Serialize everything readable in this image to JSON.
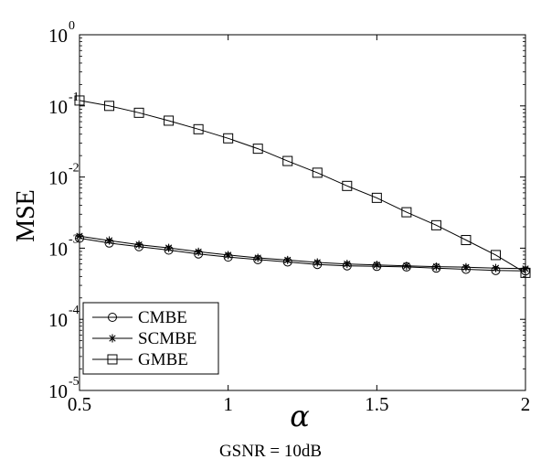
{
  "chart_data": {
    "type": "line",
    "title": "",
    "xlabel": "α",
    "ylabel": "MSE",
    "caption": "GSNR = 10dB",
    "yscale": "log",
    "xlim": [
      0.5,
      2
    ],
    "ylim": [
      1e-05,
      1
    ],
    "xticks": [
      "0.5",
      "1",
      "1.5",
      "2"
    ],
    "yticks": [
      {
        "base": "10",
        "exp": "0"
      },
      {
        "base": "10",
        "exp": "-1"
      },
      {
        "base": "10",
        "exp": "-2"
      },
      {
        "base": "10",
        "exp": "-3"
      },
      {
        "base": "10",
        "exp": "-4"
      },
      {
        "base": "10",
        "exp": "-5"
      }
    ],
    "grid": false,
    "legend_position": "bottom-left",
    "x": [
      0.5,
      0.6,
      0.7,
      0.8,
      0.9,
      1.0,
      1.1,
      1.2,
      1.3,
      1.4,
      1.5,
      1.6,
      1.7,
      1.8,
      1.9,
      2.0
    ],
    "series": [
      {
        "name": "CMBE",
        "marker": "circle",
        "values": [
          0.00138,
          0.00118,
          0.00105,
          0.00094,
          0.00083,
          0.00075,
          0.00069,
          0.00064,
          0.00059,
          0.000565,
          0.000555,
          0.000545,
          0.000525,
          0.000505,
          0.000485,
          0.00048
        ]
      },
      {
        "name": "SCMBE",
        "marker": "star",
        "values": [
          0.00148,
          0.00128,
          0.00112,
          0.00101,
          0.00089,
          0.0008,
          0.00073,
          0.00068,
          0.00063,
          0.0006,
          0.00058,
          0.000565,
          0.00055,
          0.00054,
          0.000525,
          0.000515
        ]
      },
      {
        "name": "GMBE",
        "marker": "square",
        "values": [
          0.119,
          0.1,
          0.08,
          0.062,
          0.047,
          0.035,
          0.025,
          0.0168,
          0.0115,
          0.0075,
          0.0051,
          0.0032,
          0.0021,
          0.0013,
          0.0008,
          0.00045
        ]
      }
    ]
  }
}
